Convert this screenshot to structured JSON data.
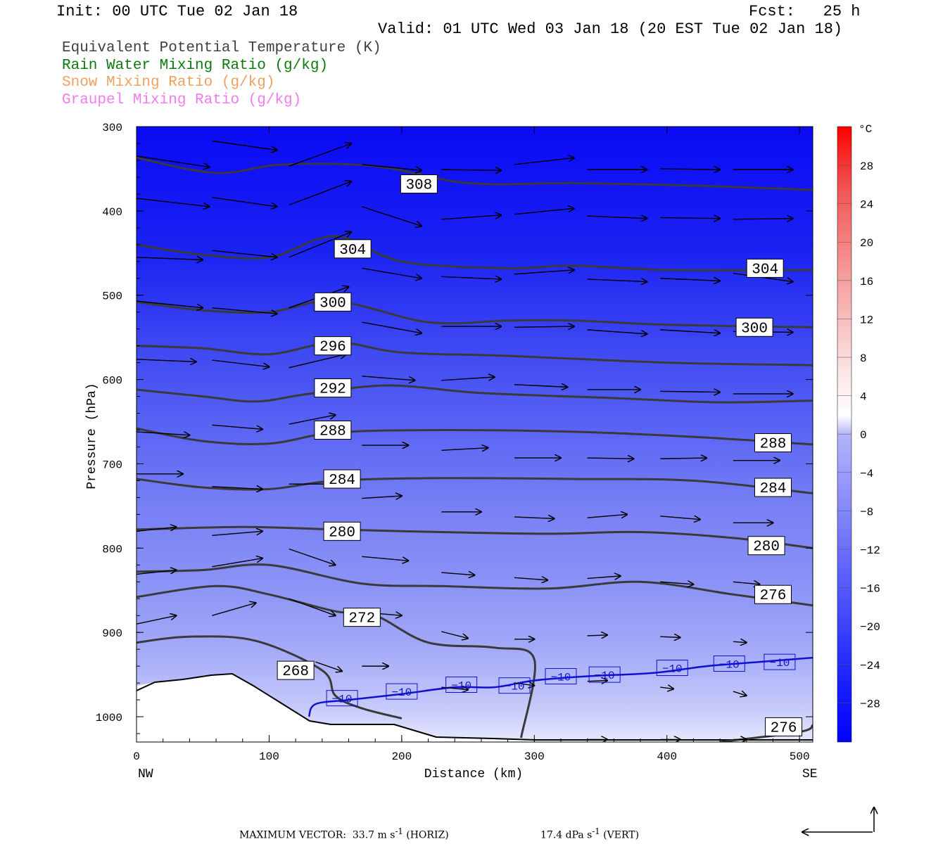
{
  "header": {
    "init": "Init: 00 UTC Tue 02 Jan 18",
    "fcst": "Fcst:   25 h",
    "valid": "Valid: 01 UTC Wed 03 Jan 18 (20 EST Tue 02 Jan 18)"
  },
  "legend": [
    {
      "label": "Equivalent Potential Temperature (K)",
      "color": "#404040"
    },
    {
      "label": "Rain Water Mixing Ratio (g/kg)",
      "color": "#0e7a0e"
    },
    {
      "label": "Snow Mixing Ratio (g/kg)",
      "color": "#f0a060"
    },
    {
      "label": "Graupel Mixing Ratio (g/kg)",
      "color": "#f07cf0"
    }
  ],
  "chart_data": {
    "type": "heatmap",
    "xlabel": "Distance (km)",
    "ylabel": "Pressure (hPa)",
    "xlim": [
      0,
      510
    ],
    "ylim": [
      1030,
      300
    ],
    "x_ticks": [
      0,
      100,
      200,
      300,
      400,
      500
    ],
    "y_ticks": [
      300,
      400,
      500,
      600,
      700,
      800,
      900,
      1000
    ],
    "x_left_label": "NW",
    "x_right_label": "SE",
    "colorbar": {
      "unit": "°C",
      "labels": [
        28,
        24,
        20,
        16,
        12,
        8,
        4,
        0,
        -4,
        -8,
        -12,
        -16,
        -20,
        -24,
        -28
      ]
    },
    "theta_e_contours": [
      {
        "value": 308,
        "points": [
          [
            0,
            337
          ],
          [
            60,
            355
          ],
          [
            110,
            345
          ],
          [
            180,
            347
          ],
          [
            250,
            367
          ],
          [
            330,
            367
          ],
          [
            420,
            370
          ],
          [
            510,
            375
          ]
        ],
        "labels": [
          [
            213,
            368
          ]
        ]
      },
      {
        "value": 304,
        "points": [
          [
            0,
            440
          ],
          [
            50,
            452
          ],
          [
            100,
            455
          ],
          [
            150,
            430
          ],
          [
            200,
            460
          ],
          [
            280,
            468
          ],
          [
            330,
            465
          ],
          [
            400,
            470
          ],
          [
            510,
            470
          ]
        ],
        "labels": [
          [
            163,
            445
          ],
          [
            474,
            468
          ]
        ]
      },
      {
        "value": 300,
        "points": [
          [
            0,
            508
          ],
          [
            50,
            518
          ],
          [
            100,
            520
          ],
          [
            150,
            507
          ],
          [
            220,
            532
          ],
          [
            280,
            530
          ],
          [
            330,
            530
          ],
          [
            400,
            535
          ],
          [
            510,
            538
          ]
        ],
        "labels": [
          [
            148,
            508
          ],
          [
            466,
            538
          ]
        ]
      },
      {
        "value": 296,
        "points": [
          [
            0,
            560
          ],
          [
            50,
            563
          ],
          [
            100,
            570
          ],
          [
            150,
            556
          ],
          [
            200,
            568
          ],
          [
            280,
            572
          ],
          [
            400,
            580
          ],
          [
            510,
            583
          ]
        ],
        "labels": [
          [
            148,
            560
          ]
        ]
      },
      {
        "value": 292,
        "points": [
          [
            0,
            612
          ],
          [
            50,
            620
          ],
          [
            90,
            626
          ],
          [
            130,
            617
          ],
          [
            190,
            607
          ],
          [
            260,
            616
          ],
          [
            360,
            622
          ],
          [
            440,
            627
          ],
          [
            510,
            625
          ]
        ],
        "labels": [
          [
            148,
            610
          ]
        ]
      },
      {
        "value": 288,
        "points": [
          [
            0,
            658
          ],
          [
            50,
            673
          ],
          [
            100,
            676
          ],
          [
            150,
            663
          ],
          [
            230,
            660
          ],
          [
            330,
            662
          ],
          [
            420,
            668
          ],
          [
            510,
            677
          ]
        ],
        "labels": [
          [
            148,
            660
          ],
          [
            480,
            675
          ]
        ]
      },
      {
        "value": 284,
        "points": [
          [
            0,
            718
          ],
          [
            50,
            728
          ],
          [
            100,
            730
          ],
          [
            150,
            720
          ],
          [
            230,
            717
          ],
          [
            330,
            718
          ],
          [
            420,
            720
          ],
          [
            510,
            735
          ]
        ],
        "labels": [
          [
            155,
            718
          ],
          [
            480,
            728
          ]
        ]
      },
      {
        "value": 280,
        "points": [
          [
            0,
            778
          ],
          [
            80,
            775
          ],
          [
            150,
            778
          ],
          [
            230,
            781
          ],
          [
            310,
            783
          ],
          [
            380,
            781
          ],
          [
            450,
            788
          ],
          [
            510,
            800
          ]
        ],
        "labels": [
          [
            155,
            780
          ],
          [
            475,
            797
          ]
        ]
      },
      {
        "value": 276,
        "points": [
          [
            0,
            828
          ],
          [
            50,
            826
          ],
          [
            100,
            820
          ],
          [
            170,
            842
          ],
          [
            230,
            845
          ],
          [
            310,
            848
          ],
          [
            380,
            840
          ],
          [
            450,
            855
          ],
          [
            510,
            868
          ]
        ],
        "labels": [
          [
            480,
            855
          ]
        ]
      },
      {
        "value": 272,
        "points": [
          [
            0,
            858
          ],
          [
            60,
            845
          ],
          [
            100,
            855
          ],
          [
            150,
            875
          ],
          [
            180,
            880
          ],
          [
            220,
            912
          ],
          [
            270,
            918
          ],
          [
            300,
            932
          ],
          [
            290,
            1025
          ]
        ],
        "labels": [
          [
            170,
            882
          ]
        ]
      },
      {
        "value": 268,
        "points": [
          [
            0,
            912
          ],
          [
            40,
            905
          ],
          [
            90,
            910
          ],
          [
            140,
            945
          ],
          [
            150,
            975
          ],
          [
            170,
            990
          ],
          [
            200,
            1002
          ]
        ],
        "labels": [
          [
            120,
            945
          ]
        ]
      },
      {
        "value": 276,
        "points": [
          [
            440,
            1030
          ],
          [
            500,
            1018
          ],
          [
            510,
            1010
          ]
        ],
        "labels": [
          [
            488,
            1012
          ]
        ]
      }
    ],
    "temperature_contours": [
      {
        "value": -10,
        "points": [
          [
            130,
            1000
          ],
          [
            135,
            985
          ],
          [
            160,
            980
          ],
          [
            200,
            973
          ],
          [
            240,
            965
          ],
          [
            270,
            965
          ],
          [
            300,
            957
          ],
          [
            340,
            952
          ],
          [
            390,
            948
          ],
          [
            430,
            940
          ],
          [
            470,
            935
          ],
          [
            510,
            930
          ]
        ],
        "labels": [
          [
            155,
            978
          ],
          [
            200,
            970
          ],
          [
            245,
            962
          ],
          [
            285,
            963
          ],
          [
            320,
            952
          ],
          [
            353,
            950
          ],
          [
            404,
            942
          ],
          [
            447,
            937
          ],
          [
            485,
            935
          ]
        ]
      }
    ],
    "wind_vector_scale": {
      "max_horiz": "33.7 m s",
      "max_horiz_suffix": "(HORIZ)",
      "max_vert": "17.4 dPa s",
      "max_vert_suffix": "(VERT)",
      "exponent": "-1"
    }
  },
  "footer": {
    "maximum_vector": "MAXIMUM VECTOR:",
    "horiz": "33.7 m s",
    "horiz_unit": "(HORIZ)",
    "vert": "17.4 dPa s",
    "vert_unit": "(VERT)",
    "exp": "-1"
  },
  "colors": {
    "theta_e": "#3a3a3a",
    "temp_minus10": "#1010d0",
    "terrain_line": "#000000"
  }
}
